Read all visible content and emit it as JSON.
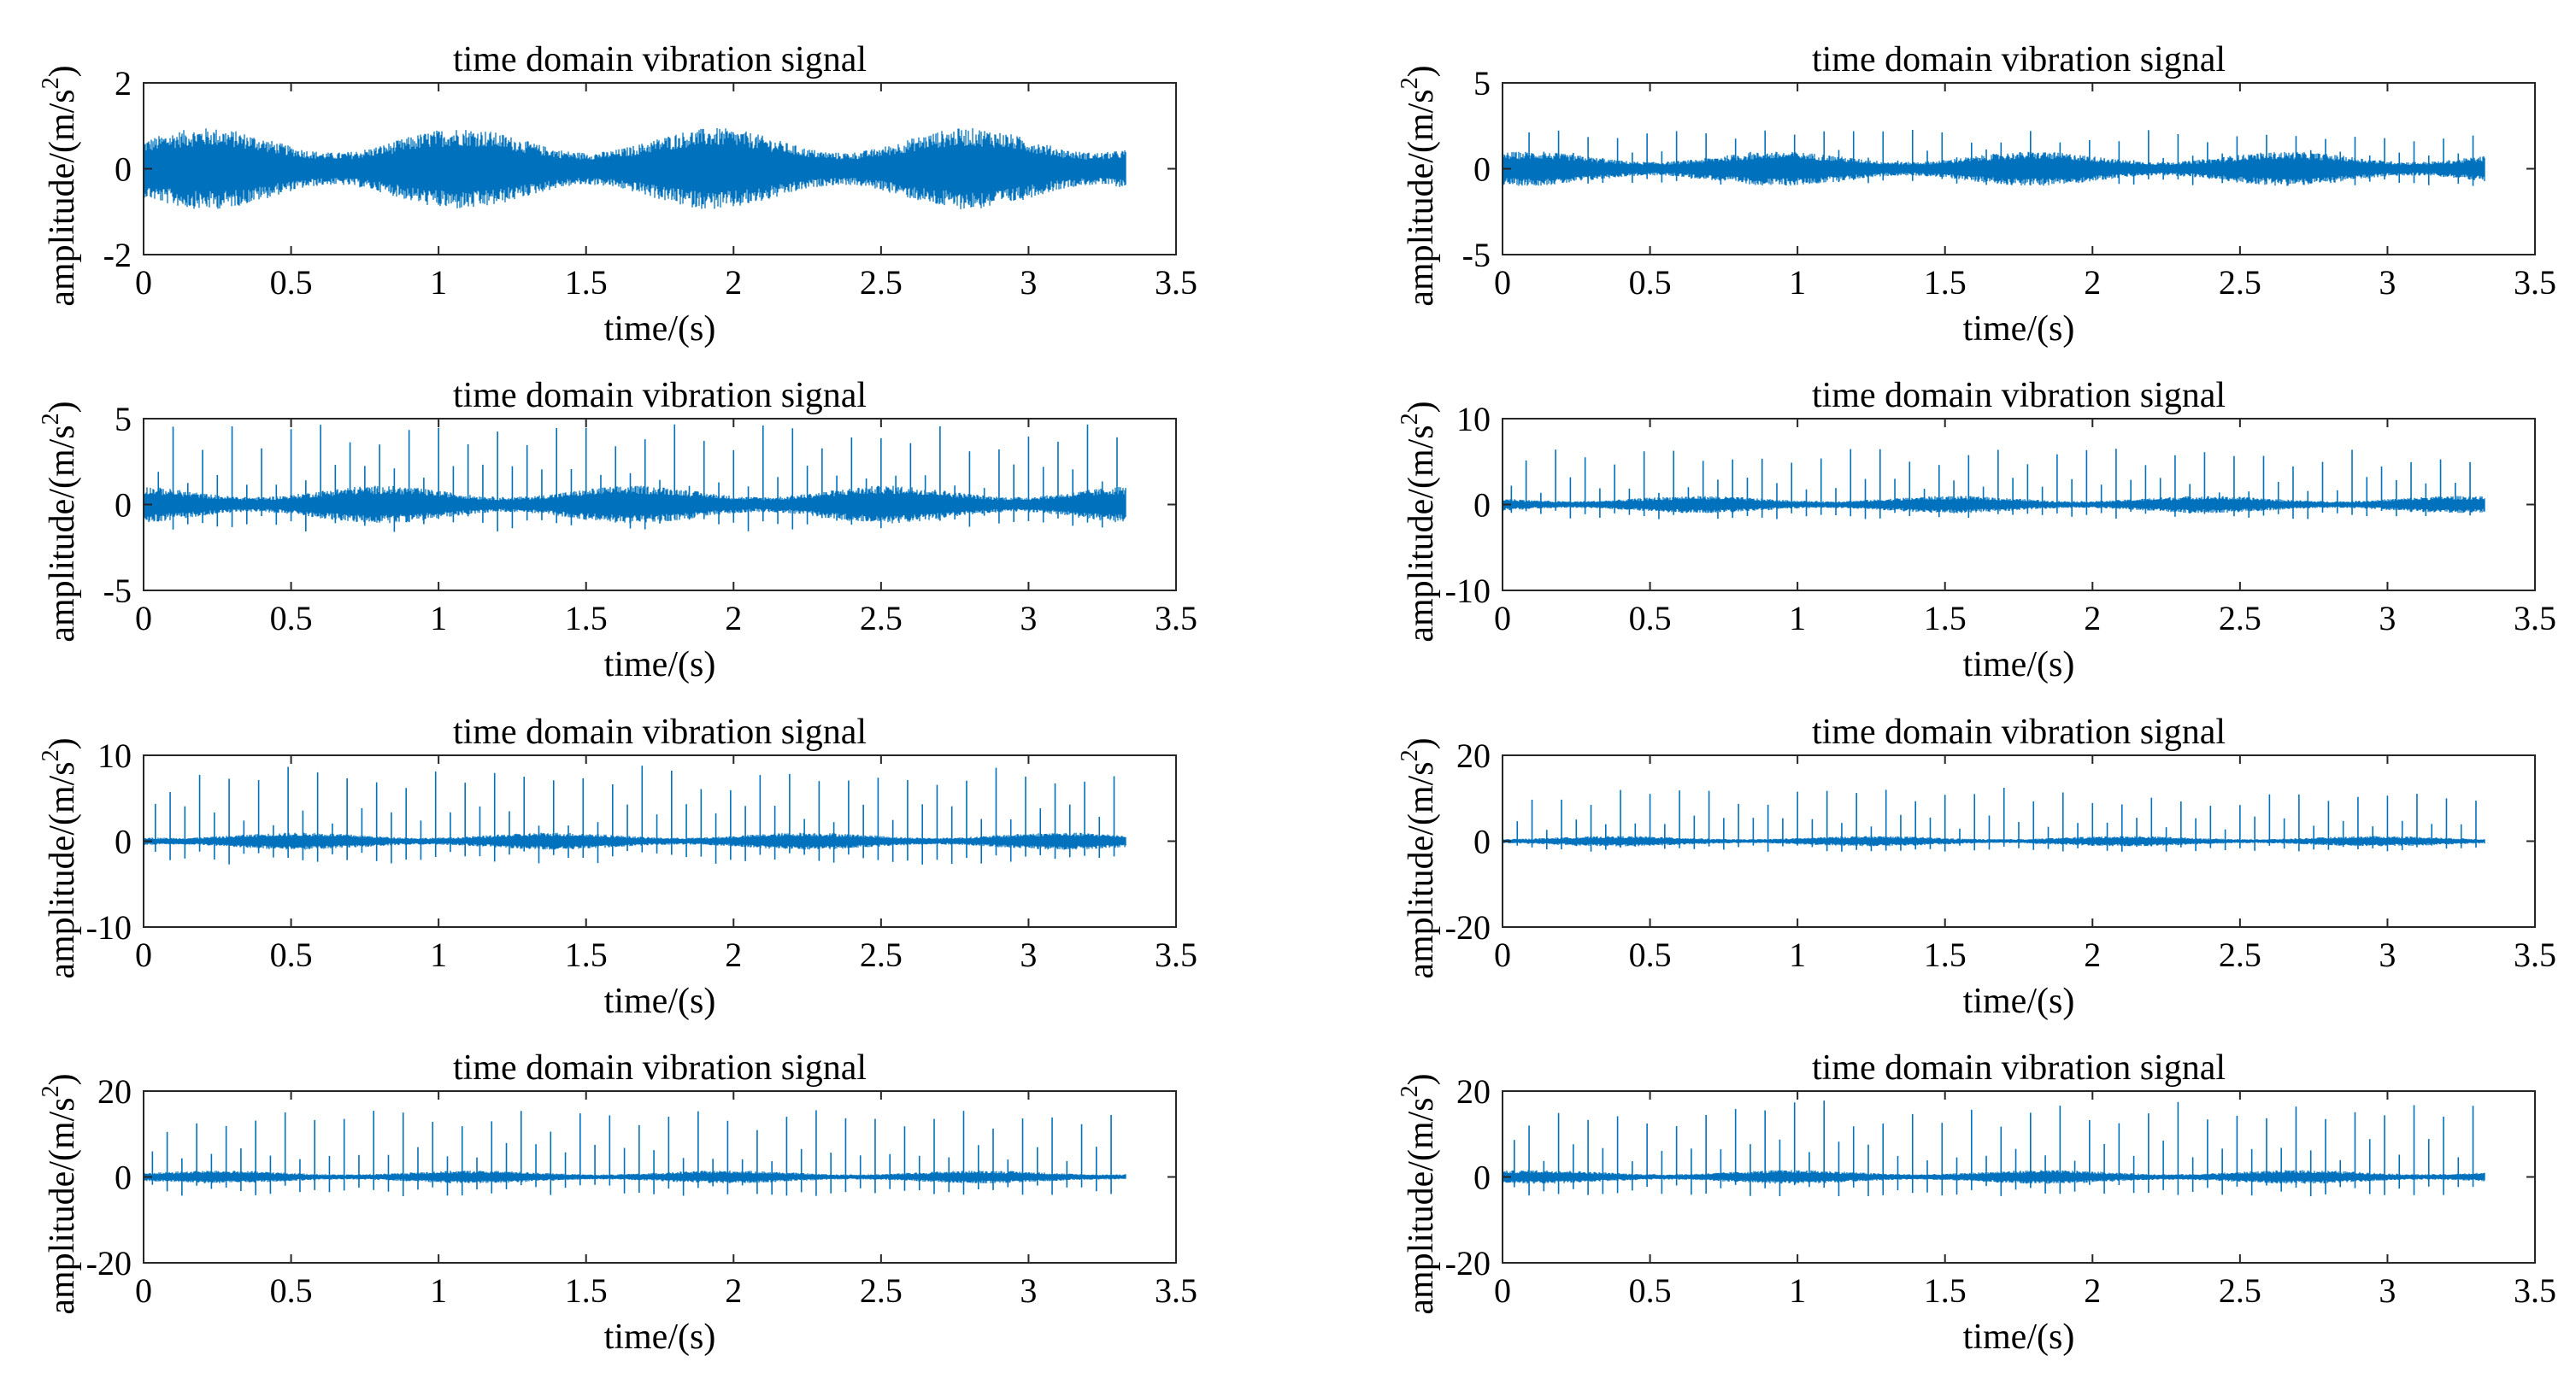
{
  "figure": {
    "layout": "4 rows x 2 columns"
  },
  "chart_data": [
    {
      "id": "r1c1",
      "type": "line",
      "title": "time domain vibration signal",
      "xlabel": "time/(s)",
      "ylabel_main": "amplitude/(m/s",
      "ylabel_sup": "2",
      "ylabel_close": ")",
      "xlim": [
        0,
        3.5
      ],
      "ylim": [
        -2,
        2
      ],
      "xticks": [
        "0",
        "0.5",
        "1",
        "1.5",
        "2",
        "2.5",
        "3",
        "3.5"
      ],
      "yticks": [
        "-2",
        "0",
        "2"
      ],
      "signal_end": 3.33,
      "noise_amplitude": 0.95,
      "impulse_period": 0.1,
      "impulse_peak": 0,
      "impulse_neg": 0,
      "series_color": "#0072BD"
    },
    {
      "id": "r1c2",
      "type": "line",
      "title": "time domain vibration signal",
      "xlabel": "time/(s)",
      "ylabel_main": "amplitude/(m/s",
      "ylabel_sup": "2",
      "ylabel_close": ")",
      "xlim": [
        0,
        3.5
      ],
      "ylim": [
        -5,
        5
      ],
      "xticks": [
        "0",
        "0.5",
        "1",
        "1.5",
        "2",
        "2.5",
        "3",
        "3.5"
      ],
      "yticks": [
        "-5",
        "0",
        "5"
      ],
      "signal_end": 3.33,
      "noise_amplitude": 1.0,
      "impulse_period": 0.1,
      "impulse_peak": 2.3,
      "impulse_neg": 1.0,
      "series_color": "#0072BD"
    },
    {
      "id": "r2c1",
      "type": "line",
      "title": "time domain vibration signal",
      "xlabel": "time/(s)",
      "ylabel_main": "amplitude/(m/s",
      "ylabel_sup": "2",
      "ylabel_close": ")",
      "xlim": [
        0,
        3.5
      ],
      "ylim": [
        -5,
        5
      ],
      "xticks": [
        "0",
        "0.5",
        "1",
        "1.5",
        "2",
        "2.5",
        "3",
        "3.5"
      ],
      "yticks": [
        "-5",
        "0",
        "5"
      ],
      "signal_end": 3.33,
      "noise_amplitude": 1.1,
      "impulse_period": 0.1,
      "impulse_peak": 4.7,
      "impulse_neg": 1.6,
      "series_color": "#0072BD"
    },
    {
      "id": "r2c2",
      "type": "line",
      "title": "time domain vibration signal",
      "xlabel": "time/(s)",
      "ylabel_main": "amplitude/(m/s",
      "ylabel_sup": "2",
      "ylabel_close": ")",
      "xlim": [
        0,
        3.5
      ],
      "ylim": [
        -10,
        10
      ],
      "xticks": [
        "0",
        "0.5",
        "1",
        "1.5",
        "2",
        "2.5",
        "3",
        "3.5"
      ],
      "yticks": [
        "-10",
        "0",
        "10"
      ],
      "signal_end": 3.33,
      "noise_amplitude": 1.0,
      "impulse_period": 0.1,
      "impulse_peak": 6.5,
      "impulse_neg": 1.8,
      "series_color": "#0072BD"
    },
    {
      "id": "r3c1",
      "type": "line",
      "title": "time domain vibration signal",
      "xlabel": "time/(s)",
      "ylabel_main": "amplitude/(m/s",
      "ylabel_sup": "2",
      "ylabel_close": ")",
      "xlim": [
        0,
        3.5
      ],
      "ylim": [
        -10,
        10
      ],
      "xticks": [
        "0",
        "0.5",
        "1",
        "1.5",
        "2",
        "2.5",
        "3",
        "3.5"
      ],
      "yticks": [
        "-10",
        "0",
        "10"
      ],
      "signal_end": 3.33,
      "noise_amplitude": 1.0,
      "impulse_period": 0.1,
      "impulse_peak": 8.8,
      "impulse_neg": 2.8,
      "series_color": "#0072BD"
    },
    {
      "id": "r3c2",
      "type": "line",
      "title": "time domain vibration signal",
      "xlabel": "time/(s)",
      "ylabel_main": "amplitude/(m/s",
      "ylabel_sup": "2",
      "ylabel_close": ")",
      "xlim": [
        0,
        3.5
      ],
      "ylim": [
        -20,
        20
      ],
      "xticks": [
        "0",
        "0.5",
        "1",
        "1.5",
        "2",
        "2.5",
        "3",
        "3.5"
      ],
      "yticks": [
        "-20",
        "0",
        "20"
      ],
      "signal_end": 3.33,
      "noise_amplitude": 1.2,
      "impulse_period": 0.1,
      "impulse_peak": 12.5,
      "impulse_neg": 2.5,
      "series_color": "#0072BD"
    },
    {
      "id": "r4c1",
      "type": "line",
      "title": "time domain vibration signal",
      "xlabel": "time/(s)",
      "ylabel_main": "amplitude/(m/s",
      "ylabel_sup": "2",
      "ylabel_close": ")",
      "xlim": [
        0,
        3.5
      ],
      "ylim": [
        -20,
        20
      ],
      "xticks": [
        "0",
        "0.5",
        "1",
        "1.5",
        "2",
        "2.5",
        "3",
        "3.5"
      ],
      "yticks": [
        "-20",
        "0",
        "20"
      ],
      "signal_end": 3.33,
      "noise_amplitude": 1.5,
      "impulse_period": 0.1,
      "impulse_peak": 16,
      "impulse_neg": 4.5,
      "series_color": "#0072BD"
    },
    {
      "id": "r4c2",
      "type": "line",
      "title": "time domain vibration signal",
      "xlabel": "time/(s)",
      "ylabel_main": "amplitude/(m/s",
      "ylabel_sup": "2",
      "ylabel_close": ")",
      "xlim": [
        0,
        3.5
      ],
      "ylim": [
        -20,
        20
      ],
      "xticks": [
        "0",
        "0.5",
        "1",
        "1.5",
        "2",
        "2.5",
        "3",
        "3.5"
      ],
      "yticks": [
        "-20",
        "0",
        "20"
      ],
      "signal_end": 3.33,
      "noise_amplitude": 1.6,
      "impulse_period": 0.1,
      "impulse_peak": 18,
      "impulse_neg": 4.5,
      "series_color": "#0072BD"
    }
  ]
}
